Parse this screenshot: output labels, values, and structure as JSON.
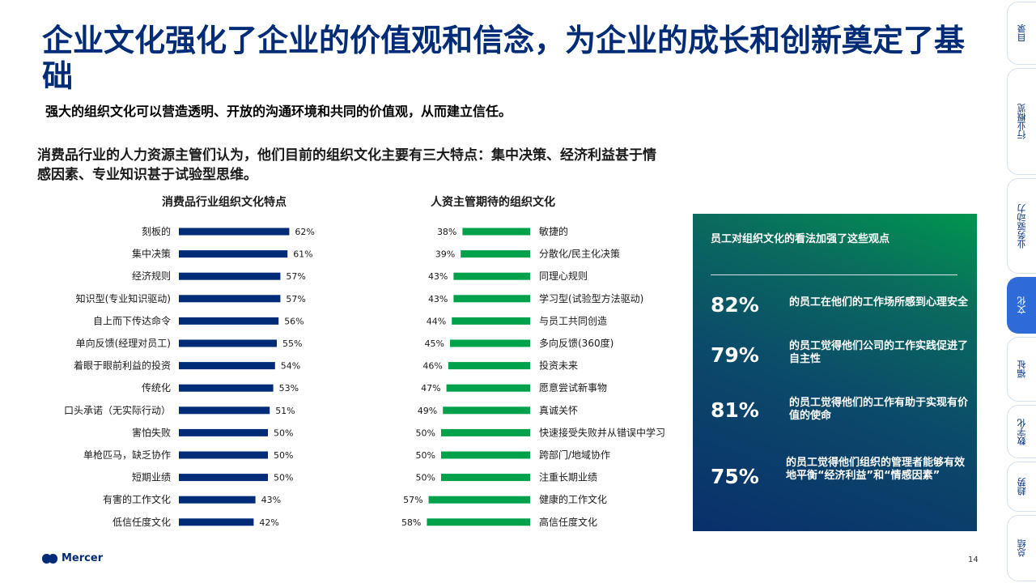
{
  "page": {
    "title": "企业文化强化了企业的价值观和信念，为企业的成长和创新奠定了基础",
    "subtitle": "强大的组织文化可以营造透明、开放的沟通环境和共同的价值观，从而建立信任。",
    "intro": "消费品行业的人力资源主管们认为，他们目前的组织文化主要有三大特点：集中决策、经济利益甚于情感因素、专业知识甚于试验型思维。",
    "page_number": "14",
    "logo_text": "Mercer"
  },
  "chart_data": [
    {
      "type": "bar",
      "orientation": "horizontal",
      "title": "消费品行业组织文化特点",
      "categories": [
        "刻板的",
        "集中决策",
        "经济规则",
        "知识型(专业知识驱动)",
        "自上而下传达命令",
        "单向反馈(经理对员工)",
        "着眼于眼前利益的投资",
        "传统化",
        "口头承诺（无实际行动）",
        "害怕失败",
        "单枪匹马，缺乏协作",
        "短期业绩",
        "有害的工作文化",
        "低信任度文化"
      ],
      "values": [
        62,
        61,
        57,
        57,
        56,
        55,
        54,
        53,
        51,
        50,
        50,
        50,
        43,
        42
      ],
      "value_labels": [
        "62%",
        "61%",
        "57%",
        "57%",
        "56%",
        "55%",
        "54%",
        "53%",
        "51%",
        "50%",
        "50%",
        "50%",
        "43%",
        "42%"
      ],
      "unit": "%",
      "color": "#002c77",
      "direction": "left-to-right"
    },
    {
      "type": "bar",
      "orientation": "horizontal",
      "title": "人资主管期待的组织文化",
      "categories": [
        "敏捷的",
        "分散化/民主化决策",
        "同理心规则",
        "学习型(试验型方法驱动)",
        "与员工共同创造",
        "多向反馈(360度)",
        "投资未来",
        "愿意尝试新事物",
        "真诚关怀",
        "快速接受失败并从错误中学习",
        "跨部门/地域协作",
        "注重长期业绩",
        "健康的工作文化",
        "高信任度文化"
      ],
      "values": [
        38,
        39,
        43,
        43,
        44,
        45,
        46,
        47,
        49,
        50,
        50,
        50,
        57,
        58
      ],
      "value_labels": [
        "38%",
        "39%",
        "43%",
        "43%",
        "44%",
        "45%",
        "46%",
        "47%",
        "49%",
        "50%",
        "50%",
        "50%",
        "57%",
        "58%"
      ],
      "unit": "%",
      "color": "#00a14b",
      "direction": "right-to-left"
    }
  ],
  "panel": {
    "title": "员工对组织文化的看法加强了这些观点",
    "stats": [
      {
        "value": "82%",
        "text": "的员工在他们的工作场所感到心理安全"
      },
      {
        "value": "79%",
        "text": "的员工觉得他们公司的工作实践促进了自主性"
      },
      {
        "value": "81%",
        "text": "的员工觉得他们的工作有助于实现有价值的使命"
      },
      {
        "value": "75%",
        "text": "的员工觉得他们组织的管理者能够有效地平衡“经济利益”和“情感因素”"
      }
    ]
  },
  "nav": {
    "tabs": [
      {
        "label": "目录",
        "active": false
      },
      {
        "label": "行业概览",
        "active": false
      },
      {
        "label": "业务驱动力",
        "active": false
      },
      {
        "label": "文化",
        "active": true
      },
      {
        "label": "福祉",
        "active": false
      },
      {
        "label": "数字化",
        "active": false
      },
      {
        "label": "趋势",
        "active": false
      },
      {
        "label": "总结",
        "active": false
      }
    ]
  }
}
